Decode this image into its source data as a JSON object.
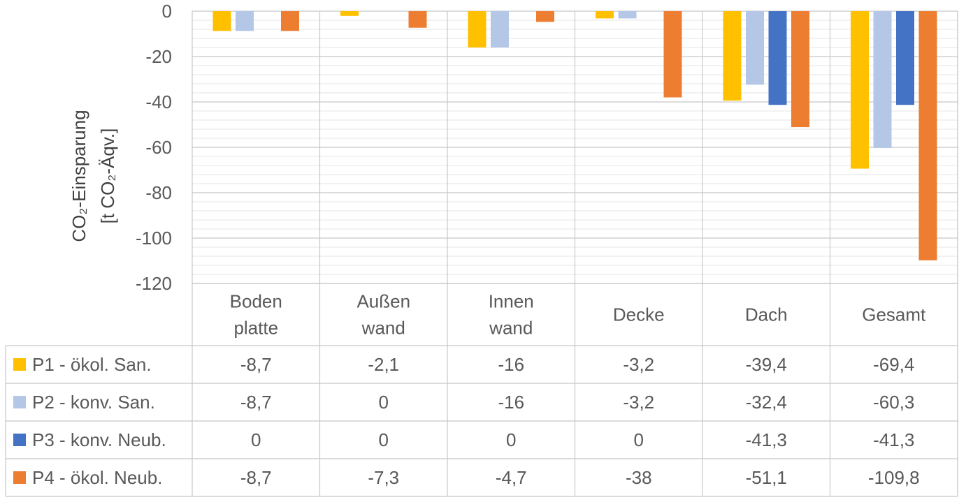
{
  "chart_data": {
    "type": "bar",
    "ylabel_line1": "CO₂-Einsparung",
    "ylabel_line2": "[t CO₂-Äqv.]",
    "ylim": [
      -120,
      0
    ],
    "yticks": [
      0,
      -20,
      -40,
      -60,
      -80,
      -100,
      -120
    ],
    "ytick_labels": [
      "0",
      "-20",
      "-40",
      "-60",
      "-80",
      "-100",
      "-120"
    ],
    "grid": true,
    "legend": "data-table",
    "categories": [
      [
        "Boden",
        "platte"
      ],
      [
        "Außen",
        "wand"
      ],
      [
        "Innen",
        "wand"
      ],
      [
        "Decke"
      ],
      [
        "Dach"
      ],
      [
        "Gesamt"
      ]
    ],
    "series": [
      {
        "name": "P1 - ökol. San.",
        "color": "#FFC000",
        "values": [
          -8.7,
          -2.1,
          -16,
          -3.2,
          -39.4,
          -69.4
        ],
        "labels": [
          "-8,7",
          "-2,1",
          "-16",
          "-3,2",
          "-39,4",
          "-69,4"
        ]
      },
      {
        "name": "P2 - konv. San.",
        "color": "#B4C7E7",
        "values": [
          -8.7,
          0,
          -16,
          -3.2,
          -32.4,
          -60.3
        ],
        "labels": [
          "-8,7",
          "0",
          "-16",
          "-3,2",
          "-32,4",
          "-60,3"
        ]
      },
      {
        "name": "P3 - konv. Neub.",
        "color": "#4472C4",
        "values": [
          0,
          0,
          0,
          0,
          -41.3,
          -41.3
        ],
        "labels": [
          "0",
          "0",
          "0",
          "0",
          "-41,3",
          "-41,3"
        ]
      },
      {
        "name": "P4 - ökol. Neub.",
        "color": "#ED7D31",
        "values": [
          -8.7,
          -7.3,
          -4.7,
          -38,
          -51.1,
          -109.8
        ],
        "labels": [
          "-8,7",
          "-7,3",
          "-4,7",
          "-38",
          "-51,1",
          "-109,8"
        ]
      }
    ]
  }
}
